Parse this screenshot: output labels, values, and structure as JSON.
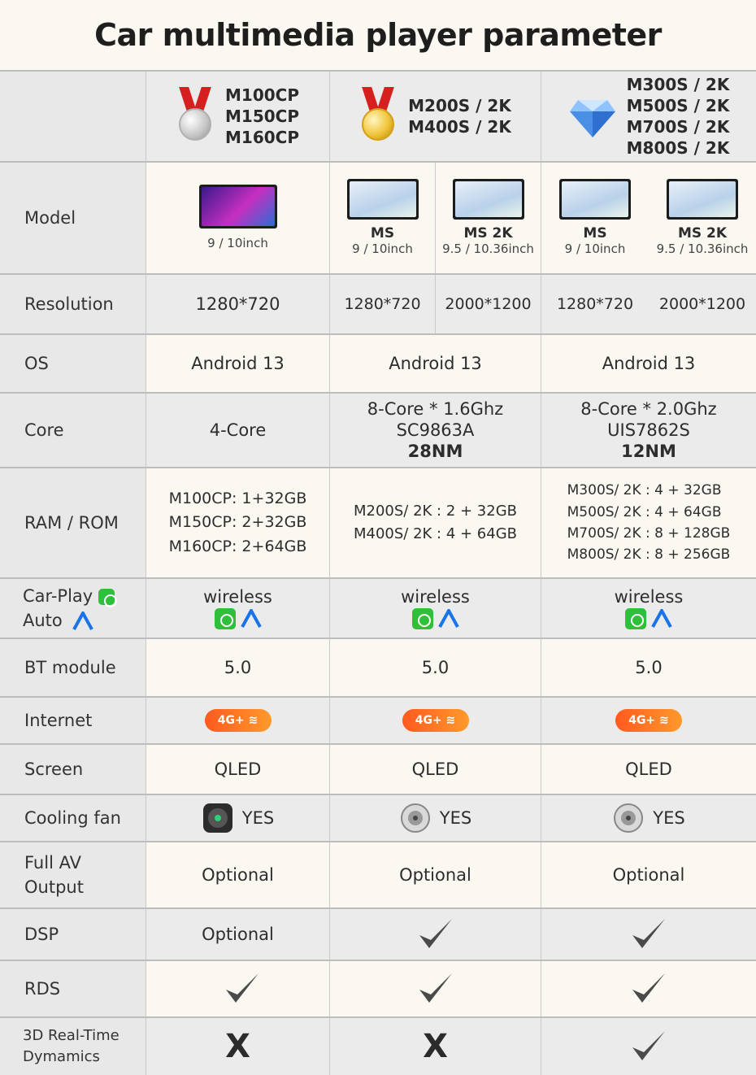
{
  "title": "Car multimedia player parameter",
  "header": {
    "col1_models": [
      "M100CP",
      "M150CP",
      "M160CP"
    ],
    "col2_models": [
      "M200S / 2K",
      "M400S / 2K"
    ],
    "col3_models": [
      "M300S / 2K",
      "M500S / 2K",
      "M700S / 2K",
      "M800S / 2K"
    ],
    "col1_icon": "silver-medal-icon",
    "col2_icon": "gold-medal-icon",
    "col3_icon": "diamond-icon"
  },
  "labels": {
    "model": "Model",
    "resolution": "Resolution",
    "os": "OS",
    "core": "Core",
    "ram": "RAM / ROM",
    "carplay_line1": "Car-Play",
    "carplay_line2": "Auto",
    "bt": "BT module",
    "internet": "Internet",
    "screen": "Screen",
    "cooling": "Cooling fan",
    "av_line1": "Full AV",
    "av_line2": "Output",
    "dsp": "DSP",
    "rds": "RDS",
    "dyn_line1": "3D Real-Time",
    "dyn_line2": "Dymamics"
  },
  "model": {
    "c1_size": "9 / 10inch",
    "c2a_name": "MS",
    "c2a_size": "9 / 10inch",
    "c2b_name": "MS 2K",
    "c2b_size": "9.5 / 10.36inch",
    "c3a_name": "MS",
    "c3a_size": "9 / 10inch",
    "c3b_name": "MS 2K",
    "c3b_size": "9.5 / 10.36inch"
  },
  "resolution": {
    "c1": "1280*720",
    "c2a": "1280*720",
    "c2b": "2000*1200",
    "c3a": "1280*720",
    "c3b": "2000*1200"
  },
  "os": {
    "c1": "Android 13",
    "c2": "Android 13",
    "c3": "Android 13"
  },
  "core": {
    "c1": "4-Core",
    "c2_line1": "8-Core * 1.6Ghz",
    "c2_line2": "SC9863A",
    "c2_line3": "28NM",
    "c3_line1": "8-Core * 2.0Ghz",
    "c3_line2": "UIS7862S",
    "c3_line3": "12NM"
  },
  "ram": {
    "c1": [
      "M100CP: 1+32GB",
      "M150CP: 2+32GB",
      "M160CP: 2+64GB"
    ],
    "c2": [
      "M200S/ 2K : 2 + 32GB",
      "M400S/ 2K : 4 + 64GB"
    ],
    "c3": [
      "M300S/ 2K : 4 + 32GB",
      "M500S/ 2K : 4 + 64GB",
      "M700S/ 2K : 8 + 128GB",
      "M800S/ 2K : 8 + 256GB"
    ]
  },
  "carplay": {
    "c1": "wireless",
    "c2": "wireless",
    "c3": "wireless"
  },
  "bt": {
    "c1": "5.0",
    "c2": "5.0",
    "c3": "5.0"
  },
  "internet": {
    "badge": "4G+"
  },
  "screen": {
    "c1": "QLED",
    "c2": "QLED",
    "c3": "QLED"
  },
  "cooling": {
    "c1": "YES",
    "c2": "YES",
    "c3": "YES"
  },
  "av": {
    "c1": "Optional",
    "c2": "Optional",
    "c3": "Optional"
  },
  "dsp": {
    "c1": "Optional"
  },
  "dynamics": {
    "c1": "X",
    "c2": "X"
  },
  "colors": {
    "accent_orange": "#ff7a22",
    "carplay_green": "#2fbf3a",
    "android_auto_blue": "#1a73e8",
    "medal_red": "#d62020"
  }
}
